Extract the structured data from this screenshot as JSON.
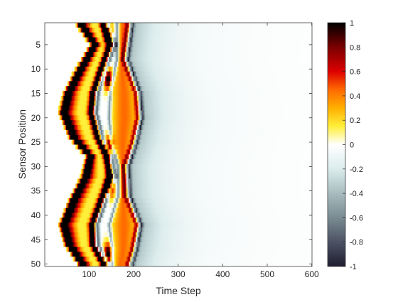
{
  "chart_data": {
    "type": "heatmap",
    "xlabel": "Time Step",
    "ylabel": "Sensor Position",
    "x_ticks": [
      100,
      200,
      300,
      400,
      500,
      600
    ],
    "y_ticks": [
      5,
      10,
      15,
      20,
      25,
      30,
      35,
      40,
      45,
      50
    ],
    "xlim": [
      1,
      600
    ],
    "ylim": [
      1,
      50
    ],
    "y_reversed": true,
    "time_steps": 600,
    "sensor_positions": 50,
    "colorbar": {
      "range": [
        -1,
        1
      ],
      "ticks": [
        "1",
        "0.8",
        "0.6",
        "0.4",
        "0.2",
        "0",
        "-0.2",
        "-0.4",
        "-0.6",
        "-0.8",
        "-1"
      ],
      "colormap_stops": [
        {
          "value": 1.0,
          "color": "#000000"
        },
        {
          "value": 0.8,
          "color": "#7a0000"
        },
        {
          "value": 0.6,
          "color": "#dd0000"
        },
        {
          "value": 0.45,
          "color": "#ff6a00"
        },
        {
          "value": 0.3,
          "color": "#ffb000"
        },
        {
          "value": 0.15,
          "color": "#ffef3a"
        },
        {
          "value": 0.0,
          "color": "#ffffff"
        },
        {
          "value": -0.2,
          "color": "#dcecec"
        },
        {
          "value": -0.4,
          "color": "#a6bcbe"
        },
        {
          "value": -0.6,
          "color": "#7a8c92"
        },
        {
          "value": -0.8,
          "color": "#4c5264"
        },
        {
          "value": -1.0,
          "color": "#1e1e30"
        }
      ]
    },
    "features": {
      "leading_front": [
        {
          "sensor": 1,
          "time": 80
        },
        {
          "sensor": 5,
          "time": 110
        },
        {
          "sensor": 10,
          "time": 78
        },
        {
          "sensor": 15,
          "time": 50
        },
        {
          "sensor": 19,
          "time": 40
        },
        {
          "sensor": 24,
          "time": 62
        },
        {
          "sensor": 28,
          "time": 100
        },
        {
          "sensor": 32,
          "time": 90
        },
        {
          "sensor": 37,
          "time": 62
        },
        {
          "sensor": 42,
          "time": 40
        },
        {
          "sensor": 46,
          "time": 52
        },
        {
          "sensor": 50,
          "time": 82
        }
      ],
      "trailing_front": [
        {
          "sensor": 1,
          "time": 135
        },
        {
          "sensor": 5,
          "time": 150
        },
        {
          "sensor": 10,
          "time": 130
        },
        {
          "sensor": 15,
          "time": 112
        },
        {
          "sensor": 19,
          "time": 108
        },
        {
          "sensor": 24,
          "time": 122
        },
        {
          "sensor": 28,
          "time": 142
        },
        {
          "sensor": 32,
          "time": 150
        },
        {
          "sensor": 37,
          "time": 130
        },
        {
          "sensor": 42,
          "time": 110
        },
        {
          "sensor": 46,
          "time": 112
        },
        {
          "sensor": 50,
          "time": 135
        }
      ],
      "cross_points": [
        {
          "sensor": 3,
          "time": 145
        },
        {
          "sensor": 12,
          "time": 143
        },
        {
          "sensor": 26,
          "time": 145
        },
        {
          "sensor": 34,
          "time": 148
        },
        {
          "sensor": 48,
          "time": 143
        }
      ],
      "late_arc_outer": [
        {
          "sensor": 1,
          "time": 190
        },
        {
          "sensor": 8,
          "time": 180
        },
        {
          "sensor": 15,
          "time": 208
        },
        {
          "sensor": 20,
          "time": 212
        },
        {
          "sensor": 25,
          "time": 200
        },
        {
          "sensor": 30,
          "time": 182
        },
        {
          "sensor": 36,
          "time": 185
        },
        {
          "sensor": 42,
          "time": 210
        },
        {
          "sensor": 47,
          "time": 200
        },
        {
          "sensor": 50,
          "time": 190
        }
      ],
      "late_arc_inner": [
        {
          "sensor": 8,
          "time": 165
        },
        {
          "sensor": 15,
          "time": 150
        },
        {
          "sensor": 20,
          "time": 148
        },
        {
          "sensor": 25,
          "time": 152
        },
        {
          "sensor": 30,
          "time": 168
        },
        {
          "sensor": 36,
          "time": 168
        },
        {
          "sensor": 42,
          "time": 148
        },
        {
          "sensor": 47,
          "time": 155
        }
      ],
      "tail_end_time": 560
    }
  }
}
